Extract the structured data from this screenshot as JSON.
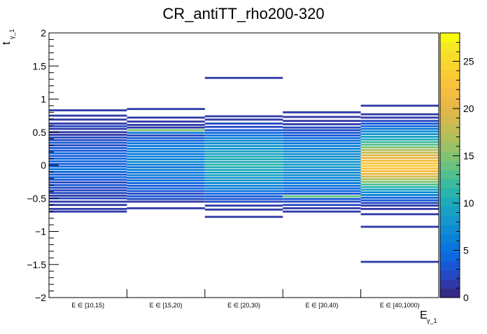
{
  "chart_data": {
    "type": "heatmap",
    "title": "CR_antiTT_rho200-320",
    "ylabel": "t",
    "ylabel_sub": "γ_1",
    "xlabel": "E",
    "xlabel_sub": "γ_1",
    "categories": [
      "E ∈ [10,15)",
      "E ∈ [15,20)",
      "E ∈ [20,30)",
      "E ∈ [30,40)",
      "E ∈ [40,1000)"
    ],
    "ylim": [
      -2,
      2
    ],
    "yticks": [
      "−2",
      "−1.5",
      "−1",
      "−0.5",
      "0",
      "0.5",
      "1",
      "1.5",
      "2"
    ],
    "ytick_values": [
      -2,
      -1.5,
      -1,
      -0.5,
      0,
      0.5,
      1,
      1.5,
      2
    ],
    "zlim": [
      0,
      28
    ],
    "zticks": [
      "0",
      "5",
      "10",
      "15",
      "20",
      "25"
    ],
    "ztick_values": [
      0,
      5,
      10,
      15,
      20,
      25
    ],
    "palette": [
      "#352a87",
      "#2f3aa8",
      "#2449c2",
      "#1858d6",
      "#0f67de",
      "#0a75dc",
      "#0a81d7",
      "#0f8cd2",
      "#1497cc",
      "#17a1c3",
      "#1eaab8",
      "#2ab3ab",
      "#3bba9d",
      "#52bf8e",
      "#6ac27f",
      "#82c372",
      "#99c266",
      "#aec05c",
      "#c1bd55",
      "#d2ba4f",
      "#e0b84a",
      "#ebb946",
      "#f4bd41",
      "#f9c33c",
      "#fbcb35",
      "#fad42f",
      "#f7de29",
      "#f5e824",
      "#f9fb0e"
    ],
    "grid": false,
    "bins": [
      {
        "column": 0,
        "t": 0.83,
        "value": 1
      },
      {
        "column": 0,
        "t": 0.75,
        "value": 1
      },
      {
        "column": 0,
        "t": 0.69,
        "value": 1
      },
      {
        "column": 0,
        "t": 0.63,
        "value": 1
      },
      {
        "column": 0,
        "t": 0.59,
        "value": 2
      },
      {
        "column": 0,
        "t": 0.55,
        "value": 1
      },
      {
        "column": 0,
        "t": 0.5,
        "value": 1
      },
      {
        "column": 0,
        "t": 0.46,
        "value": 1
      },
      {
        "column": 0,
        "t": 0.42,
        "value": 2
      },
      {
        "column": 0,
        "t": 0.38,
        "value": 2
      },
      {
        "column": 0,
        "t": 0.34,
        "value": 3
      },
      {
        "column": 0,
        "t": 0.3,
        "value": 2
      },
      {
        "column": 0,
        "t": 0.26,
        "value": 3
      },
      {
        "column": 0,
        "t": 0.22,
        "value": 3
      },
      {
        "column": 0,
        "t": 0.18,
        "value": 4
      },
      {
        "column": 0,
        "t": 0.14,
        "value": 3
      },
      {
        "column": 0,
        "t": 0.1,
        "value": 4
      },
      {
        "column": 0,
        "t": 0.06,
        "value": 4
      },
      {
        "column": 0,
        "t": 0.02,
        "value": 3
      },
      {
        "column": 0,
        "t": -0.02,
        "value": 4
      },
      {
        "column": 0,
        "t": -0.06,
        "value": 5
      },
      {
        "column": 0,
        "t": -0.1,
        "value": 4
      },
      {
        "column": 0,
        "t": -0.14,
        "value": 3
      },
      {
        "column": 0,
        "t": -0.18,
        "value": 4
      },
      {
        "column": 0,
        "t": -0.22,
        "value": 3
      },
      {
        "column": 0,
        "t": -0.26,
        "value": 2
      },
      {
        "column": 0,
        "t": -0.3,
        "value": 3
      },
      {
        "column": 0,
        "t": -0.34,
        "value": 2
      },
      {
        "column": 0,
        "t": -0.38,
        "value": 2
      },
      {
        "column": 0,
        "t": -0.42,
        "value": 2
      },
      {
        "column": 0,
        "t": -0.46,
        "value": 1
      },
      {
        "column": 0,
        "t": -0.5,
        "value": 2
      },
      {
        "column": 0,
        "t": -0.55,
        "value": 1
      },
      {
        "column": 0,
        "t": -0.6,
        "value": 1
      },
      {
        "column": 0,
        "t": -0.66,
        "value": 1
      },
      {
        "column": 0,
        "t": -0.7,
        "value": 1
      },
      {
        "column": 1,
        "t": 0.85,
        "value": 1
      },
      {
        "column": 1,
        "t": 0.72,
        "value": 1
      },
      {
        "column": 1,
        "t": 0.66,
        "value": 1
      },
      {
        "column": 1,
        "t": 0.61,
        "value": 1
      },
      {
        "column": 1,
        "t": 0.57,
        "value": 1
      },
      {
        "column": 1,
        "t": 0.53,
        "value": 15
      },
      {
        "column": 1,
        "t": 0.49,
        "value": 5
      },
      {
        "column": 1,
        "t": 0.45,
        "value": 2
      },
      {
        "column": 1,
        "t": 0.41,
        "value": 3
      },
      {
        "column": 1,
        "t": 0.37,
        "value": 4
      },
      {
        "column": 1,
        "t": 0.33,
        "value": 5
      },
      {
        "column": 1,
        "t": 0.29,
        "value": 5
      },
      {
        "column": 1,
        "t": 0.25,
        "value": 6
      },
      {
        "column": 1,
        "t": 0.21,
        "value": 6
      },
      {
        "column": 1,
        "t": 0.17,
        "value": 5
      },
      {
        "column": 1,
        "t": 0.13,
        "value": 6
      },
      {
        "column": 1,
        "t": 0.09,
        "value": 6
      },
      {
        "column": 1,
        "t": 0.05,
        "value": 7
      },
      {
        "column": 1,
        "t": 0.01,
        "value": 6
      },
      {
        "column": 1,
        "t": -0.03,
        "value": 5
      },
      {
        "column": 1,
        "t": -0.07,
        "value": 6
      },
      {
        "column": 1,
        "t": -0.11,
        "value": 5
      },
      {
        "column": 1,
        "t": -0.15,
        "value": 6
      },
      {
        "column": 1,
        "t": -0.19,
        "value": 4
      },
      {
        "column": 1,
        "t": -0.23,
        "value": 5
      },
      {
        "column": 1,
        "t": -0.27,
        "value": 4
      },
      {
        "column": 1,
        "t": -0.31,
        "value": 3
      },
      {
        "column": 1,
        "t": -0.35,
        "value": 4
      },
      {
        "column": 1,
        "t": -0.39,
        "value": 3
      },
      {
        "column": 1,
        "t": -0.43,
        "value": 2
      },
      {
        "column": 1,
        "t": -0.47,
        "value": 3
      },
      {
        "column": 1,
        "t": -0.51,
        "value": 2
      },
      {
        "column": 1,
        "t": -0.55,
        "value": 1
      },
      {
        "column": 1,
        "t": -0.65,
        "value": 1
      },
      {
        "column": 2,
        "t": 1.32,
        "value": 1
      },
      {
        "column": 2,
        "t": 0.74,
        "value": 1
      },
      {
        "column": 2,
        "t": 0.69,
        "value": 1
      },
      {
        "column": 2,
        "t": 0.63,
        "value": 2
      },
      {
        "column": 2,
        "t": 0.58,
        "value": 2
      },
      {
        "column": 2,
        "t": 0.53,
        "value": 3
      },
      {
        "column": 2,
        "t": 0.49,
        "value": 4
      },
      {
        "column": 2,
        "t": 0.45,
        "value": 5
      },
      {
        "column": 2,
        "t": 0.41,
        "value": 6
      },
      {
        "column": 2,
        "t": 0.37,
        "value": 7
      },
      {
        "column": 2,
        "t": 0.33,
        "value": 7
      },
      {
        "column": 2,
        "t": 0.29,
        "value": 8
      },
      {
        "column": 2,
        "t": 0.25,
        "value": 8
      },
      {
        "column": 2,
        "t": 0.21,
        "value": 9
      },
      {
        "column": 2,
        "t": 0.17,
        "value": 9
      },
      {
        "column": 2,
        "t": 0.13,
        "value": 10
      },
      {
        "column": 2,
        "t": 0.09,
        "value": 10
      },
      {
        "column": 2,
        "t": 0.05,
        "value": 10
      },
      {
        "column": 2,
        "t": 0.01,
        "value": 11
      },
      {
        "column": 2,
        "t": -0.03,
        "value": 10
      },
      {
        "column": 2,
        "t": -0.07,
        "value": 10
      },
      {
        "column": 2,
        "t": -0.11,
        "value": 9
      },
      {
        "column": 2,
        "t": -0.15,
        "value": 9
      },
      {
        "column": 2,
        "t": -0.19,
        "value": 8
      },
      {
        "column": 2,
        "t": -0.23,
        "value": 8
      },
      {
        "column": 2,
        "t": -0.27,
        "value": 7
      },
      {
        "column": 2,
        "t": -0.31,
        "value": 6
      },
      {
        "column": 2,
        "t": -0.35,
        "value": 6
      },
      {
        "column": 2,
        "t": -0.39,
        "value": 5
      },
      {
        "column": 2,
        "t": -0.43,
        "value": 4
      },
      {
        "column": 2,
        "t": -0.47,
        "value": 3
      },
      {
        "column": 2,
        "t": -0.51,
        "value": 3
      },
      {
        "column": 2,
        "t": -0.55,
        "value": 2
      },
      {
        "column": 2,
        "t": -0.61,
        "value": 1
      },
      {
        "column": 2,
        "t": -0.67,
        "value": 1
      },
      {
        "column": 2,
        "t": -0.78,
        "value": 1
      },
      {
        "column": 3,
        "t": 0.8,
        "value": 1
      },
      {
        "column": 3,
        "t": 0.73,
        "value": 1
      },
      {
        "column": 3,
        "t": 0.67,
        "value": 1
      },
      {
        "column": 3,
        "t": 0.62,
        "value": 1
      },
      {
        "column": 3,
        "t": 0.57,
        "value": 2
      },
      {
        "column": 3,
        "t": 0.53,
        "value": 2
      },
      {
        "column": 3,
        "t": 0.49,
        "value": 3
      },
      {
        "column": 3,
        "t": 0.45,
        "value": 3
      },
      {
        "column": 3,
        "t": 0.41,
        "value": 4
      },
      {
        "column": 3,
        "t": 0.37,
        "value": 5
      },
      {
        "column": 3,
        "t": 0.33,
        "value": 5
      },
      {
        "column": 3,
        "t": 0.29,
        "value": 6
      },
      {
        "column": 3,
        "t": 0.25,
        "value": 6
      },
      {
        "column": 3,
        "t": 0.21,
        "value": 7
      },
      {
        "column": 3,
        "t": 0.17,
        "value": 7
      },
      {
        "column": 3,
        "t": 0.13,
        "value": 7
      },
      {
        "column": 3,
        "t": 0.09,
        "value": 8
      },
      {
        "column": 3,
        "t": 0.05,
        "value": 8
      },
      {
        "column": 3,
        "t": 0.01,
        "value": 8
      },
      {
        "column": 3,
        "t": -0.03,
        "value": 8
      },
      {
        "column": 3,
        "t": -0.07,
        "value": 7
      },
      {
        "column": 3,
        "t": -0.11,
        "value": 7
      },
      {
        "column": 3,
        "t": -0.15,
        "value": 7
      },
      {
        "column": 3,
        "t": -0.19,
        "value": 6
      },
      {
        "column": 3,
        "t": -0.23,
        "value": 6
      },
      {
        "column": 3,
        "t": -0.27,
        "value": 5
      },
      {
        "column": 3,
        "t": -0.31,
        "value": 5
      },
      {
        "column": 3,
        "t": -0.35,
        "value": 4
      },
      {
        "column": 3,
        "t": -0.39,
        "value": 4
      },
      {
        "column": 3,
        "t": -0.43,
        "value": 3
      },
      {
        "column": 3,
        "t": -0.47,
        "value": 14
      },
      {
        "column": 3,
        "t": -0.51,
        "value": 3
      },
      {
        "column": 3,
        "t": -0.55,
        "value": 2
      },
      {
        "column": 3,
        "t": -0.6,
        "value": 2
      },
      {
        "column": 3,
        "t": -0.65,
        "value": 1
      },
      {
        "column": 3,
        "t": -0.7,
        "value": 1
      },
      {
        "column": 4,
        "t": 0.9,
        "value": 1
      },
      {
        "column": 4,
        "t": 0.77,
        "value": 1
      },
      {
        "column": 4,
        "t": 0.72,
        "value": 1
      },
      {
        "column": 4,
        "t": 0.67,
        "value": 2
      },
      {
        "column": 4,
        "t": 0.63,
        "value": 3
      },
      {
        "column": 4,
        "t": 0.59,
        "value": 4
      },
      {
        "column": 4,
        "t": 0.55,
        "value": 5
      },
      {
        "column": 4,
        "t": 0.51,
        "value": 7
      },
      {
        "column": 4,
        "t": 0.47,
        "value": 8
      },
      {
        "column": 4,
        "t": 0.43,
        "value": 9
      },
      {
        "column": 4,
        "t": 0.39,
        "value": 10
      },
      {
        "column": 4,
        "t": 0.35,
        "value": 12
      },
      {
        "column": 4,
        "t": 0.31,
        "value": 13
      },
      {
        "column": 4,
        "t": 0.27,
        "value": 15
      },
      {
        "column": 4,
        "t": 0.23,
        "value": 17
      },
      {
        "column": 4,
        "t": 0.19,
        "value": 18
      },
      {
        "column": 4,
        "t": 0.15,
        "value": 20
      },
      {
        "column": 4,
        "t": 0.11,
        "value": 21
      },
      {
        "column": 4,
        "t": 0.07,
        "value": 22
      },
      {
        "column": 4,
        "t": 0.03,
        "value": 23
      },
      {
        "column": 4,
        "t": -0.01,
        "value": 24
      },
      {
        "column": 4,
        "t": -0.05,
        "value": 23
      },
      {
        "column": 4,
        "t": -0.09,
        "value": 22
      },
      {
        "column": 4,
        "t": -0.13,
        "value": 21
      },
      {
        "column": 4,
        "t": -0.17,
        "value": 19
      },
      {
        "column": 4,
        "t": -0.21,
        "value": 17
      },
      {
        "column": 4,
        "t": -0.25,
        "value": 15
      },
      {
        "column": 4,
        "t": -0.29,
        "value": 13
      },
      {
        "column": 4,
        "t": -0.33,
        "value": 11
      },
      {
        "column": 4,
        "t": -0.37,
        "value": 9
      },
      {
        "column": 4,
        "t": -0.41,
        "value": 7
      },
      {
        "column": 4,
        "t": -0.45,
        "value": 6
      },
      {
        "column": 4,
        "t": -0.49,
        "value": 4
      },
      {
        "column": 4,
        "t": -0.53,
        "value": 3
      },
      {
        "column": 4,
        "t": -0.57,
        "value": 2
      },
      {
        "column": 4,
        "t": -0.61,
        "value": 1
      },
      {
        "column": 4,
        "t": -0.66,
        "value": 1
      },
      {
        "column": 4,
        "t": -0.74,
        "value": 1
      },
      {
        "column": 4,
        "t": -0.93,
        "value": 1
      },
      {
        "column": 4,
        "t": -1.46,
        "value": 1
      }
    ]
  }
}
